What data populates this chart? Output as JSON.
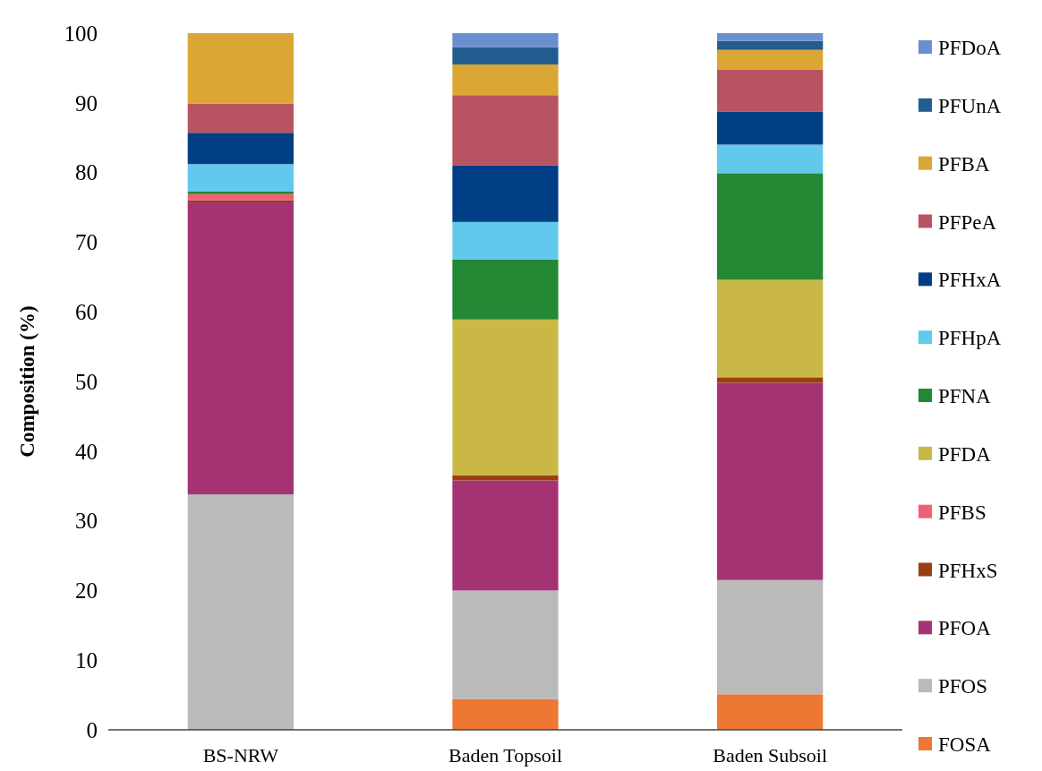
{
  "chart_data": {
    "type": "bar",
    "stacked": true,
    "ylabel": "Composition (%)",
    "categories": [
      "BS-NRW",
      "Baden Topsoil",
      "Baden Subsoil"
    ],
    "ylim": [
      0,
      100
    ],
    "yticks": [
      0,
      10,
      20,
      30,
      40,
      50,
      60,
      70,
      80,
      90,
      100
    ],
    "legend": "right",
    "grid": false,
    "series": [
      {
        "name": "FOSA",
        "color": "#ed7733",
        "values": [
          0,
          4.4,
          5.1
        ]
      },
      {
        "name": "PFOS",
        "color": "#bababa",
        "values": [
          33.8,
          15.6,
          16.4
        ]
      },
      {
        "name": "PFOA",
        "color": "#a53373",
        "values": [
          41.9,
          15.8,
          28.3
        ]
      },
      {
        "name": "PFHxS",
        "color": "#9a3f12",
        "values": [
          0.3,
          0.7,
          0.8
        ]
      },
      {
        "name": "PFBS",
        "color": "#ec6174",
        "values": [
          0.9,
          0,
          0
        ]
      },
      {
        "name": "PFDA",
        "color": "#cab846",
        "values": [
          0,
          22.4,
          14.0
        ]
      },
      {
        "name": "PFNA",
        "color": "#238734",
        "values": [
          0.4,
          8.6,
          15.3
        ]
      },
      {
        "name": "PFHpA",
        "color": "#63c9ec",
        "values": [
          3.9,
          5.4,
          4.1
        ]
      },
      {
        "name": "PFHxA",
        "color": "#003f86",
        "values": [
          4.5,
          8.1,
          4.7
        ]
      },
      {
        "name": "PFPeA",
        "color": "#b85461",
        "values": [
          4.2,
          10.1,
          6.1
        ]
      },
      {
        "name": "PFBA",
        "color": "#dca635",
        "values": [
          10.1,
          4.4,
          2.8
        ]
      },
      {
        "name": "PFUnA",
        "color": "#235d90",
        "values": [
          0,
          2.5,
          1.3
        ]
      },
      {
        "name": "PFDoA",
        "color": "#6a8fd1",
        "values": [
          0,
          2.0,
          1.1
        ]
      }
    ]
  }
}
